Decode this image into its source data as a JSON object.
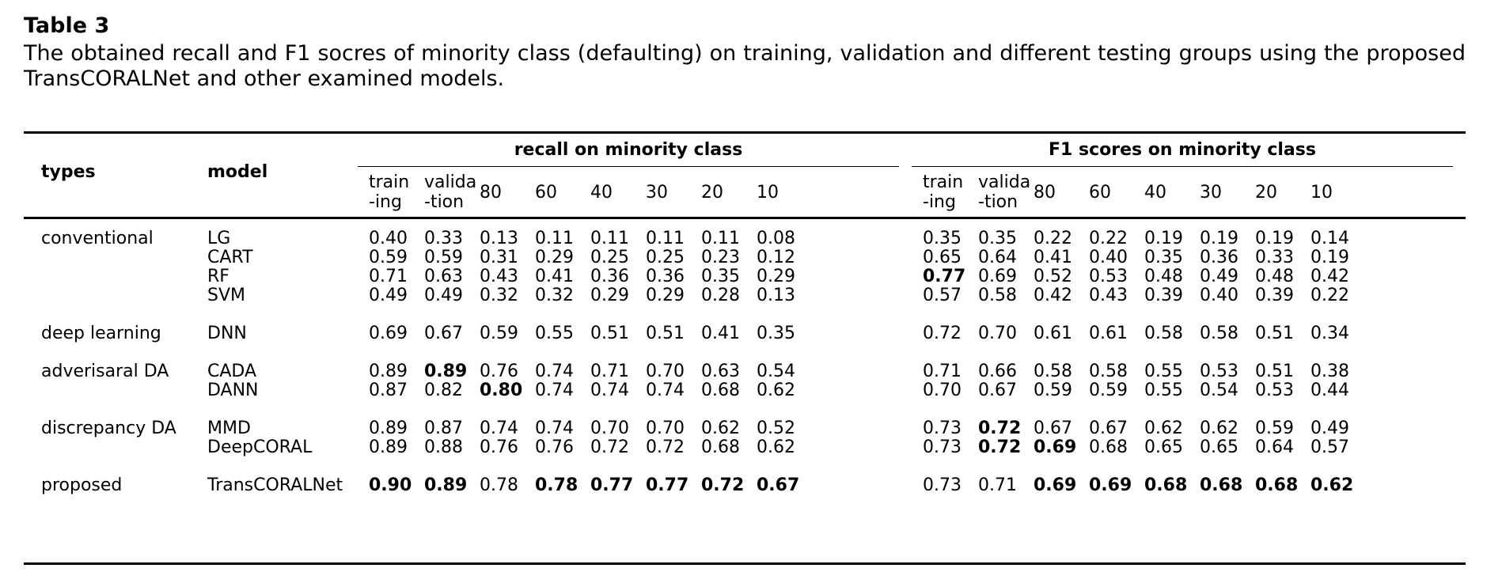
{
  "table_label": "Table 3",
  "caption": "The obtained recall and F1 socres of minority class (defaulting) on training, validation and different testing groups using the proposed TransCORALNet and other examined models.",
  "headers": {
    "types": "types",
    "model": "model",
    "group_recall": "recall on minority class",
    "group_f1": "F1 scores on minority class",
    "sub_recall": [
      [
        "train",
        "-ing"
      ],
      [
        "valida",
        "-tion"
      ],
      [
        "80"
      ],
      [
        "60"
      ],
      [
        "40"
      ],
      [
        "30"
      ],
      [
        "20"
      ],
      [
        "10"
      ]
    ],
    "sub_f1": [
      [
        "train",
        "-ing"
      ],
      [
        "valida",
        "-tion"
      ],
      [
        "80"
      ],
      [
        "60"
      ],
      [
        "40"
      ],
      [
        "30"
      ],
      [
        "20"
      ],
      [
        "10"
      ]
    ]
  },
  "rows": [
    {
      "type": "conventional",
      "model": "LG",
      "recall": [
        "0.40",
        "0.33",
        "0.13",
        "0.11",
        "0.11",
        "0.11",
        "0.11",
        "0.08"
      ],
      "f1": [
        "0.35",
        "0.35",
        "0.22",
        "0.22",
        "0.19",
        "0.19",
        "0.19",
        "0.14"
      ],
      "bold_recall": [],
      "bold_f1": []
    },
    {
      "type": "",
      "model": "CART",
      "recall": [
        "0.59",
        "0.59",
        "0.31",
        "0.29",
        "0.25",
        "0.25",
        "0.23",
        "0.12"
      ],
      "f1": [
        "0.65",
        "0.64",
        "0.41",
        "0.40",
        "0.35",
        "0.36",
        "0.33",
        "0.19"
      ],
      "bold_recall": [],
      "bold_f1": []
    },
    {
      "type": "",
      "model": "RF",
      "recall": [
        "0.71",
        "0.63",
        "0.43",
        "0.41",
        "0.36",
        "0.36",
        "0.35",
        "0.29"
      ],
      "f1": [
        "0.77",
        "0.69",
        "0.52",
        "0.53",
        "0.48",
        "0.49",
        "0.48",
        "0.42"
      ],
      "bold_recall": [],
      "bold_f1": [
        0
      ]
    },
    {
      "type": "",
      "model": "SVM",
      "recall": [
        "0.49",
        "0.49",
        "0.32",
        "0.32",
        "0.29",
        "0.29",
        "0.28",
        "0.13"
      ],
      "f1": [
        "0.57",
        "0.58",
        "0.42",
        "0.43",
        "0.39",
        "0.40",
        "0.39",
        "0.22"
      ],
      "bold_recall": [],
      "bold_f1": []
    },
    {
      "type": "deep learning",
      "model": "DNN",
      "recall": [
        "0.69",
        "0.67",
        "0.59",
        "0.55",
        "0.51",
        "0.51",
        "0.41",
        "0.35"
      ],
      "f1": [
        "0.72",
        "0.70",
        "0.61",
        "0.61",
        "0.58",
        "0.58",
        "0.51",
        "0.34"
      ],
      "bold_recall": [],
      "bold_f1": []
    },
    {
      "type": "adverisaral DA",
      "model": "CADA",
      "recall": [
        "0.89",
        "0.89",
        "0.76",
        "0.74",
        "0.71",
        "0.70",
        "0.63",
        "0.54"
      ],
      "f1": [
        "0.71",
        "0.66",
        "0.58",
        "0.58",
        "0.55",
        "0.53",
        "0.51",
        "0.38"
      ],
      "bold_recall": [
        1
      ],
      "bold_f1": []
    },
    {
      "type": "",
      "model": "DANN",
      "recall": [
        "0.87",
        "0.82",
        "0.80",
        "0.74",
        "0.74",
        "0.74",
        "0.68",
        "0.62"
      ],
      "f1": [
        "0.70",
        "0.67",
        "0.59",
        "0.59",
        "0.55",
        "0.54",
        "0.53",
        "0.44"
      ],
      "bold_recall": [
        2
      ],
      "bold_f1": []
    },
    {
      "type": "discrepancy DA",
      "model": "MMD",
      "recall": [
        "0.89",
        "0.87",
        "0.74",
        "0.74",
        "0.70",
        "0.70",
        "0.62",
        "0.52"
      ],
      "f1": [
        "0.73",
        "0.72",
        "0.67",
        "0.67",
        "0.62",
        "0.62",
        "0.59",
        "0.49"
      ],
      "bold_recall": [],
      "bold_f1": [
        1
      ]
    },
    {
      "type": "",
      "model": "DeepCORAL",
      "recall": [
        "0.89",
        "0.88",
        "0.76",
        "0.76",
        "0.72",
        "0.72",
        "0.68",
        "0.62"
      ],
      "f1": [
        "0.73",
        "0.72",
        "0.69",
        "0.68",
        "0.65",
        "0.65",
        "0.64",
        "0.57"
      ],
      "bold_recall": [],
      "bold_f1": [
        1,
        2
      ]
    },
    {
      "type": "proposed",
      "model": "TransCORALNet",
      "recall": [
        "0.90",
        "0.89",
        "0.78",
        "0.78",
        "0.77",
        "0.77",
        "0.72",
        "0.67"
      ],
      "f1": [
        "0.73",
        "0.71",
        "0.69",
        "0.69",
        "0.68",
        "0.68",
        "0.68",
        "0.62"
      ],
      "bold_recall": [
        0,
        1,
        3,
        4,
        5,
        6,
        7
      ],
      "bold_f1": [
        2,
        3,
        4,
        5,
        6,
        7
      ]
    }
  ]
}
